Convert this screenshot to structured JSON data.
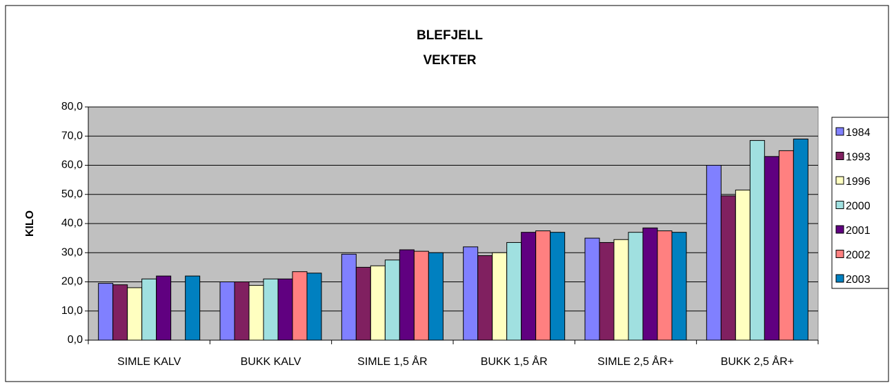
{
  "chart_data": {
    "type": "bar",
    "title": [
      "BLEFJELL",
      "VEKTER"
    ],
    "y_label": "KILO",
    "categories": [
      "SIMLE KALV",
      "BUKK KALV",
      "SIMLE 1,5 ÅR",
      "BUKK 1,5 ÅR",
      "SIMLE 2,5 ÅR+",
      "BUKK 2,5 ÅR+"
    ],
    "series": [
      {
        "name": "1984",
        "color": "#8080ff",
        "values": [
          19.5,
          20,
          29.5,
          32,
          35,
          60
        ]
      },
      {
        "name": "1993",
        "color": "#802060",
        "values": [
          19,
          20,
          25,
          29,
          33.5,
          49.5
        ]
      },
      {
        "name": "1996",
        "color": "#ffffc0",
        "values": [
          18,
          18.8,
          25.5,
          30,
          34.5,
          51.5
        ]
      },
      {
        "name": "2000",
        "color": "#a0e0e0",
        "values": [
          21,
          21,
          27.5,
          33.5,
          37,
          68.5
        ]
      },
      {
        "name": "2001",
        "color": "#600080",
        "values": [
          22,
          21,
          31,
          37,
          38.5,
          63
        ]
      },
      {
        "name": "2002",
        "color": "#ff8080",
        "values": [
          null,
          23.5,
          30.5,
          37.5,
          37.5,
          65
        ]
      },
      {
        "name": "2003",
        "color": "#0080c0",
        "values": [
          22,
          23,
          30,
          37,
          37,
          69
        ]
      }
    ],
    "ylim": [
      0,
      80
    ],
    "yticks": [
      {
        "value": 0,
        "label": "0,0"
      },
      {
        "value": 10,
        "label": "10,0"
      },
      {
        "value": 20,
        "label": "20,0"
      },
      {
        "value": 30,
        "label": "30,0"
      },
      {
        "value": 40,
        "label": "40,0"
      },
      {
        "value": 50,
        "label": "50,0"
      },
      {
        "value": 60,
        "label": "60,0"
      },
      {
        "value": 70,
        "label": "70,0"
      },
      {
        "value": 80,
        "label": "80,0"
      }
    ],
    "grid": true,
    "legend": "right"
  }
}
